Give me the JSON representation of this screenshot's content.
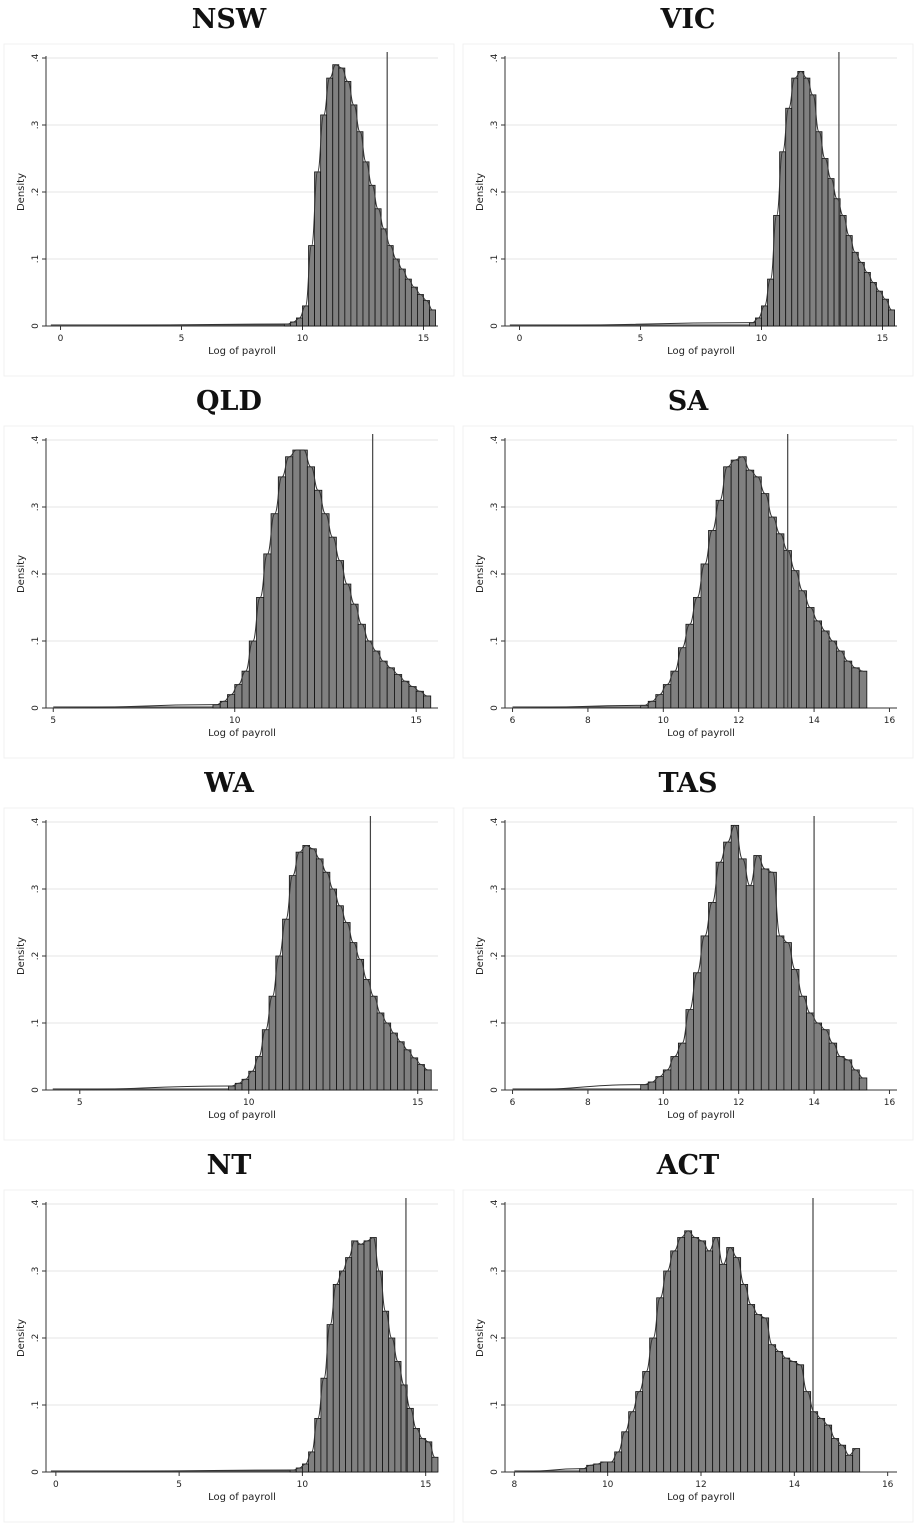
{
  "chart_data": [
    {
      "type": "bar",
      "title": "NSW",
      "xlabel": "Log of payroll",
      "ylabel": "Density",
      "xlim": [
        -0.6,
        15.6
      ],
      "ylim": [
        0,
        0.4
      ],
      "xticks": [
        0,
        5,
        10,
        15
      ],
      "xtick_labels": [
        "0",
        "5",
        "10",
        "15"
      ],
      "yticks": [
        0,
        0.1,
        0.2,
        0.3,
        0.4
      ],
      "ytick_labels": [
        "0",
        ".1",
        ".2",
        ".3",
        ".4"
      ],
      "bin_width": 0.25,
      "bins_start": [
        9.25,
        9.5,
        9.75,
        10.0,
        10.25,
        10.5,
        10.75,
        11.0,
        11.25,
        11.5,
        11.75,
        12.0,
        12.25,
        12.5,
        12.75,
        13.0,
        13.25,
        13.5,
        13.75,
        14.0,
        14.25,
        14.5,
        14.75,
        15.0,
        15.25
      ],
      "density": [
        0.003,
        0.006,
        0.012,
        0.03,
        0.12,
        0.23,
        0.315,
        0.37,
        0.39,
        0.385,
        0.365,
        0.33,
        0.29,
        0.245,
        0.21,
        0.175,
        0.145,
        0.12,
        0.1,
        0.085,
        0.07,
        0.058,
        0.047,
        0.038,
        0.024
      ],
      "vline": 13.5
    },
    {
      "type": "bar",
      "title": "VIC",
      "xlabel": "Log of payroll",
      "ylabel": "Density",
      "xlim": [
        -0.6,
        15.6
      ],
      "ylim": [
        0,
        0.4
      ],
      "xticks": [
        0,
        5,
        10,
        15
      ],
      "xtick_labels": [
        "0",
        "5",
        "10",
        "15"
      ],
      "yticks": [
        0,
        0.1,
        0.2,
        0.3,
        0.4
      ],
      "ytick_labels": [
        "0",
        ".1",
        ".2",
        ".3",
        ".4"
      ],
      "bin_width": 0.25,
      "bins_start": [
        9.5,
        9.75,
        10.0,
        10.25,
        10.5,
        10.75,
        11.0,
        11.25,
        11.5,
        11.75,
        12.0,
        12.25,
        12.5,
        12.75,
        13.0,
        13.25,
        13.5,
        13.75,
        14.0,
        14.25,
        14.5,
        14.75,
        15.0,
        15.25
      ],
      "density": [
        0.005,
        0.012,
        0.03,
        0.07,
        0.165,
        0.26,
        0.325,
        0.37,
        0.38,
        0.37,
        0.345,
        0.29,
        0.25,
        0.22,
        0.19,
        0.165,
        0.135,
        0.11,
        0.095,
        0.08,
        0.065,
        0.052,
        0.04,
        0.024
      ],
      "vline": 13.2
    },
    {
      "type": "bar",
      "title": "QLD",
      "xlabel": "Log of payroll",
      "ylabel": "Density",
      "xlim": [
        4.8,
        15.6
      ],
      "ylim": [
        0,
        0.4
      ],
      "xticks": [
        5,
        10,
        15
      ],
      "xtick_labels": [
        "5",
        "10",
        "15"
      ],
      "yticks": [
        0,
        0.1,
        0.2,
        0.3,
        0.4
      ],
      "ytick_labels": [
        "0",
        ".1",
        ".2",
        ".3",
        ".4"
      ],
      "bin_width": 0.2,
      "bins_start": [
        9.4,
        9.6,
        9.8,
        10.0,
        10.2,
        10.4,
        10.6,
        10.8,
        11.0,
        11.2,
        11.4,
        11.6,
        11.8,
        12.0,
        12.2,
        12.4,
        12.6,
        12.8,
        13.0,
        13.2,
        13.4,
        13.6,
        13.8,
        14.0,
        14.2,
        14.4,
        14.6,
        14.8,
        15.0,
        15.2
      ],
      "density": [
        0.005,
        0.01,
        0.02,
        0.035,
        0.055,
        0.1,
        0.165,
        0.23,
        0.29,
        0.345,
        0.375,
        0.385,
        0.385,
        0.36,
        0.325,
        0.29,
        0.255,
        0.22,
        0.185,
        0.155,
        0.125,
        0.1,
        0.085,
        0.07,
        0.06,
        0.05,
        0.04,
        0.032,
        0.025,
        0.018
      ],
      "vline": 13.8
    },
    {
      "type": "bar",
      "title": "SA",
      "xlabel": "Log of payroll",
      "ylabel": "Density",
      "xlim": [
        5.8,
        16.2
      ],
      "ylim": [
        0,
        0.4
      ],
      "xticks": [
        6,
        8,
        10,
        12,
        14,
        16
      ],
      "xtick_labels": [
        "6",
        "8",
        "10",
        "12",
        "14",
        "16"
      ],
      "yticks": [
        0,
        0.1,
        0.2,
        0.3,
        0.4
      ],
      "ytick_labels": [
        "0",
        ".1",
        ".2",
        ".3",
        ".4"
      ],
      "bin_width": 0.2,
      "bins_start": [
        9.4,
        9.6,
        9.8,
        10.0,
        10.2,
        10.4,
        10.6,
        10.8,
        11.0,
        11.2,
        11.4,
        11.6,
        11.8,
        12.0,
        12.2,
        12.4,
        12.6,
        12.8,
        13.0,
        13.2,
        13.4,
        13.6,
        13.8,
        14.0,
        14.2,
        14.4,
        14.6,
        14.8,
        15.0,
        15.2
      ],
      "density": [
        0.004,
        0.01,
        0.02,
        0.035,
        0.055,
        0.09,
        0.125,
        0.165,
        0.215,
        0.265,
        0.31,
        0.36,
        0.37,
        0.375,
        0.355,
        0.345,
        0.32,
        0.285,
        0.26,
        0.235,
        0.205,
        0.175,
        0.15,
        0.13,
        0.115,
        0.1,
        0.085,
        0.07,
        0.06,
        0.055
      ],
      "vline": 13.3
    },
    {
      "type": "bar",
      "title": "WA",
      "xlabel": "Log of payroll",
      "ylabel": "Density",
      "xlim": [
        4.0,
        15.6
      ],
      "ylim": [
        0,
        0.4
      ],
      "xticks": [
        5,
        10,
        15
      ],
      "xtick_labels": [
        "5",
        "10",
        "15"
      ],
      "yticks": [
        0,
        0.1,
        0.2,
        0.3,
        0.4
      ],
      "ytick_labels": [
        "0",
        ".1",
        ".2",
        ".3",
        ".4"
      ],
      "bin_width": 0.2,
      "bins_start": [
        9.4,
        9.6,
        9.8,
        10.0,
        10.2,
        10.4,
        10.6,
        10.8,
        11.0,
        11.2,
        11.4,
        11.6,
        11.8,
        12.0,
        12.2,
        12.4,
        12.6,
        12.8,
        13.0,
        13.2,
        13.4,
        13.6,
        13.8,
        14.0,
        14.2,
        14.4,
        14.6,
        14.8,
        15.0,
        15.2
      ],
      "density": [
        0.006,
        0.01,
        0.016,
        0.028,
        0.05,
        0.09,
        0.14,
        0.2,
        0.255,
        0.32,
        0.355,
        0.365,
        0.36,
        0.345,
        0.325,
        0.3,
        0.275,
        0.25,
        0.22,
        0.195,
        0.165,
        0.14,
        0.115,
        0.1,
        0.085,
        0.072,
        0.06,
        0.048,
        0.038,
        0.03
      ],
      "vline": 13.6
    },
    {
      "type": "bar",
      "title": "TAS",
      "xlabel": "Log of payroll",
      "ylabel": "Density",
      "xlim": [
        5.8,
        16.2
      ],
      "ylim": [
        0,
        0.4
      ],
      "xticks": [
        6,
        8,
        10,
        12,
        14,
        16
      ],
      "xtick_labels": [
        "6",
        "8",
        "10",
        "12",
        "14",
        "16"
      ],
      "yticks": [
        0,
        0.1,
        0.2,
        0.3,
        0.4
      ],
      "ytick_labels": [
        "0",
        ".1",
        ".2",
        ".3",
        ".4"
      ],
      "bin_width": 0.2,
      "bins_start": [
        9.4,
        9.6,
        9.8,
        10.0,
        10.2,
        10.4,
        10.6,
        10.8,
        11.0,
        11.2,
        11.4,
        11.6,
        11.8,
        12.0,
        12.2,
        12.4,
        12.6,
        12.8,
        13.0,
        13.2,
        13.4,
        13.6,
        13.8,
        14.0,
        14.2,
        14.4,
        14.6,
        14.8,
        15.0,
        15.2
      ],
      "density": [
        0.008,
        0.012,
        0.02,
        0.03,
        0.05,
        0.07,
        0.12,
        0.175,
        0.23,
        0.28,
        0.34,
        0.37,
        0.395,
        0.345,
        0.305,
        0.35,
        0.33,
        0.325,
        0.23,
        0.22,
        0.18,
        0.14,
        0.115,
        0.1,
        0.09,
        0.07,
        0.05,
        0.045,
        0.03,
        0.018
      ],
      "vline": 14.0
    },
    {
      "type": "bar",
      "title": "NT",
      "xlabel": "Log of payroll",
      "ylabel": "Density",
      "xlim": [
        -0.4,
        15.5
      ],
      "ylim": [
        0,
        0.4
      ],
      "xticks": [
        0,
        5,
        10,
        15
      ],
      "xtick_labels": [
        "0",
        "5",
        "10",
        "15"
      ],
      "yticks": [
        0,
        0.1,
        0.2,
        0.3,
        0.4
      ],
      "ytick_labels": [
        "0",
        ".1",
        ".2",
        ".3",
        ".4"
      ],
      "bin_width": 0.25,
      "bins_start": [
        9.5,
        9.75,
        10.0,
        10.25,
        10.5,
        10.75,
        11.0,
        11.25,
        11.5,
        11.75,
        12.0,
        12.25,
        12.5,
        12.75,
        13.0,
        13.25,
        13.5,
        13.75,
        14.0,
        14.25,
        14.5,
        14.75,
        15.0,
        15.25
      ],
      "density": [
        0.003,
        0.006,
        0.012,
        0.03,
        0.08,
        0.14,
        0.22,
        0.28,
        0.3,
        0.32,
        0.345,
        0.34,
        0.345,
        0.35,
        0.3,
        0.24,
        0.2,
        0.165,
        0.13,
        0.095,
        0.065,
        0.05,
        0.045,
        0.022
      ],
      "vline": 14.2
    },
    {
      "type": "bar",
      "title": "ACT",
      "xlabel": "Log of payroll",
      "ylabel": "Density",
      "xlim": [
        7.8,
        16.2
      ],
      "ylim": [
        0,
        0.4
      ],
      "xticks": [
        8,
        10,
        12,
        14,
        16
      ],
      "xtick_labels": [
        "8",
        "10",
        "12",
        "14",
        "16"
      ],
      "yticks": [
        0,
        0.1,
        0.2,
        0.3,
        0.4
      ],
      "ytick_labels": [
        "0",
        ".1",
        ".2",
        ".3",
        ".4"
      ],
      "bin_width": 0.15,
      "bins_start": [
        9.4,
        9.55,
        9.7,
        9.85,
        10.0,
        10.15,
        10.3,
        10.45,
        10.6,
        10.75,
        10.9,
        11.05,
        11.2,
        11.35,
        11.5,
        11.65,
        11.8,
        11.95,
        12.1,
        12.25,
        12.4,
        12.55,
        12.7,
        12.85,
        13.0,
        13.15,
        13.3,
        13.45,
        13.6,
        13.75,
        13.9,
        14.05,
        14.2,
        14.35,
        14.5,
        14.65,
        14.8,
        14.95,
        15.1,
        15.25
      ],
      "density": [
        0.005,
        0.01,
        0.012,
        0.015,
        0.015,
        0.03,
        0.06,
        0.09,
        0.12,
        0.15,
        0.2,
        0.26,
        0.3,
        0.33,
        0.35,
        0.36,
        0.35,
        0.345,
        0.33,
        0.35,
        0.31,
        0.335,
        0.32,
        0.28,
        0.25,
        0.235,
        0.23,
        0.19,
        0.18,
        0.17,
        0.165,
        0.16,
        0.12,
        0.09,
        0.08,
        0.07,
        0.05,
        0.04,
        0.025,
        0.035
      ],
      "vline": 14.4
    }
  ]
}
